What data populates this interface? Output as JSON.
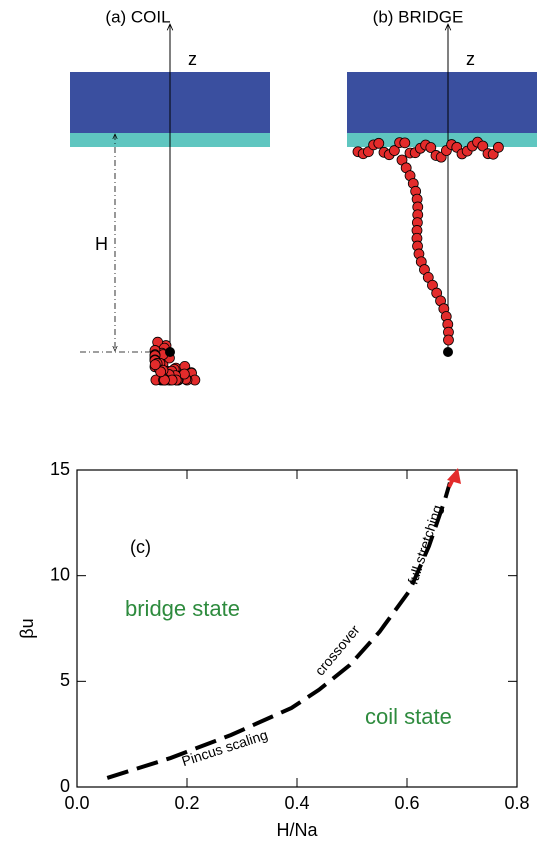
{
  "panels": {
    "coil_title": "(a) COIL",
    "bridge_title": "(b) BRIDGE",
    "z_label": "z",
    "h_label": "H"
  },
  "chart_data": {
    "type": "line",
    "xlabel": "H/Na",
    "ylabel": "βu",
    "xlim": [
      0,
      0.8
    ],
    "xticks": [
      {
        "value": 0,
        "label": "0.0"
      },
      0.2,
      0.4,
      0.6,
      0.8
    ],
    "ylim": [
      0,
      15
    ],
    "yticks": [
      0,
      5,
      10,
      15
    ],
    "annotations": [
      "(c)",
      "bridge state",
      "coil state",
      "Pincus scaling",
      "crossover",
      "full stretching"
    ],
    "series": [
      {
        "color": "#000000",
        "x": [
          0.055,
          0.17,
          0.28,
          0.39,
          0.44,
          0.496,
          0.55,
          0.605,
          0.64,
          0.669,
          0.678
        ],
        "values": [
          0.43,
          1.37,
          2.46,
          3.74,
          4.6,
          5.77,
          7.34,
          9.3,
          11.4,
          13.6,
          14.4
        ]
      }
    ]
  }
}
